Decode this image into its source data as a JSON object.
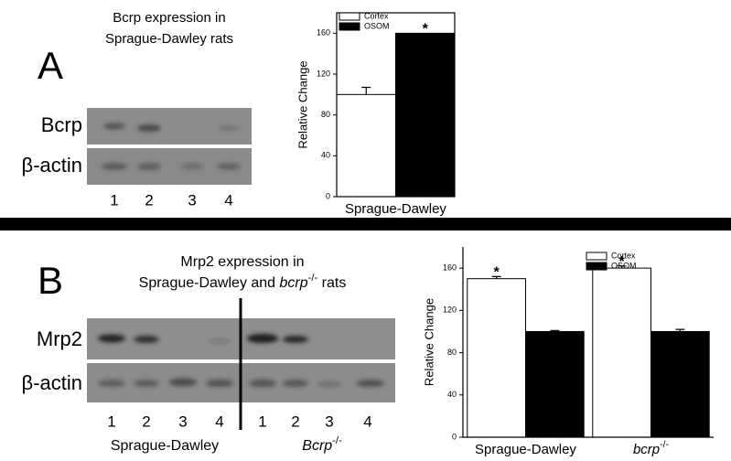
{
  "panels": [
    {
      "label": "A",
      "title": [
        "Bcrp expression in",
        "Sprague-Dawley rats"
      ],
      "blot": {
        "rows": [
          "Bcrp",
          "β-actin"
        ],
        "lanes": [
          "1",
          "2",
          "3",
          "4"
        ]
      }
    },
    {
      "label": "B",
      "title": [
        "Mrp2 expression in",
        [
          "Sprague-Dawley and ",
          "bcrp",
          "-/-",
          " rats"
        ]
      ],
      "blot": {
        "rows": [
          "Mrp2",
          "β-actin"
        ],
        "lanes": [
          "1",
          "2",
          "3",
          "4",
          "1",
          "2",
          "3",
          "4"
        ],
        "groups": [
          [
            "Sprague-Dawley"
          ],
          [
            "Bcrp",
            "-/-"
          ]
        ]
      }
    }
  ],
  "chart_data": [
    {
      "type": "bar",
      "y_label": "Relative Change",
      "categories": [
        "Sprague-Dawley"
      ],
      "series": [
        {
          "name": "Cortex",
          "color": "#ffffff",
          "values": [
            100
          ],
          "errors": [
            7
          ],
          "marks": [
            null
          ]
        },
        {
          "name": "OSOM",
          "color": "#000000",
          "values": [
            160
          ],
          "errors": [
            null
          ],
          "marks": [
            "*"
          ]
        }
      ],
      "ylim": [
        0,
        180
      ],
      "yticks": [
        0,
        40,
        80,
        120,
        160
      ],
      "legend": "upper left"
    },
    {
      "type": "bar",
      "y_label": "Relative Change",
      "categories": [
        "Sprague-Dawley",
        "bcrp"
      ],
      "category_superscripts": [
        null,
        "-/-"
      ],
      "series": [
        {
          "name": "Cortex",
          "color": "#ffffff",
          "values": [
            150,
            160
          ],
          "errors": [
            2,
            2
          ],
          "marks": [
            "*",
            "*"
          ]
        },
        {
          "name": "OSOM",
          "color": "#000000",
          "values": [
            100,
            100
          ],
          "errors": [
            1,
            2
          ],
          "marks": [
            null,
            null
          ]
        }
      ],
      "ylim": [
        0,
        180
      ],
      "yticks": [
        0,
        40,
        80,
        120,
        160
      ],
      "legend": "upper center"
    }
  ]
}
